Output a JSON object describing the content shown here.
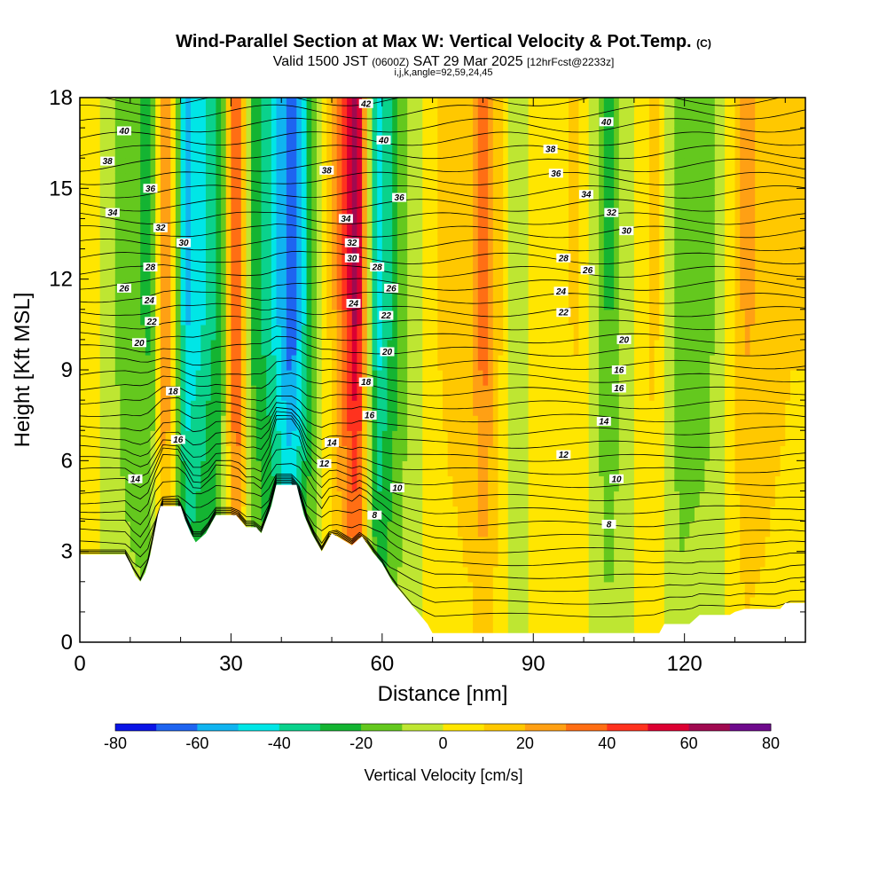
{
  "header": {
    "title": "Wind-Parallel Section at Max W: Vertical Velocity & Pot.Temp.",
    "title_suffix": "(C)",
    "valid_prefix": "Valid 1500 JST",
    "valid_z": "(0600Z)",
    "valid_date": "SAT 29 Mar 2025",
    "valid_fcst": "[12hrFcst@2233z]",
    "indices": "i,j,k,angle=92,59,24,45"
  },
  "chart_data": {
    "type": "heatmap",
    "xlabel": "Distance [nm]",
    "ylabel": "Height [Kft MSL]",
    "xlim": [
      0,
      144
    ],
    "ylim": [
      0,
      18
    ],
    "xticks": [
      0,
      30,
      60,
      90,
      120
    ],
    "yticks": [
      0,
      3,
      6,
      9,
      12,
      15,
      18
    ],
    "colorbar": {
      "label": "Vertical Velocity [cm/s]",
      "ticks": [
        -80,
        -60,
        -40,
        -20,
        0,
        20,
        40,
        60,
        80
      ],
      "levels": [
        -80,
        -70,
        -60,
        -50,
        -40,
        -30,
        -20,
        -10,
        0,
        10,
        20,
        30,
        40,
        50,
        60,
        70,
        80
      ],
      "colors": [
        "#0a14e6",
        "#1e64f0",
        "#10b4f0",
        "#00e6e6",
        "#0ad28c",
        "#14b432",
        "#64c81e",
        "#bee632",
        "#ffe600",
        "#ffc800",
        "#ffa014",
        "#ff6e14",
        "#ff321e",
        "#dc0032",
        "#a00a50",
        "#6e0a8c"
      ]
    },
    "velocity_columns_cm_s": [
      {
        "x": 2,
        "w": 8
      },
      {
        "x": 8,
        "w": -12
      },
      {
        "x": 14,
        "w": -20
      },
      {
        "x": 17,
        "w": 32
      },
      {
        "x": 21,
        "w": -46
      },
      {
        "x": 24,
        "w": -38
      },
      {
        "x": 28,
        "w": -22
      },
      {
        "x": 31,
        "w": 45
      },
      {
        "x": 34,
        "w": -18
      },
      {
        "x": 38,
        "w": -35
      },
      {
        "x": 42,
        "w": -62
      },
      {
        "x": 46,
        "w": -20
      },
      {
        "x": 51,
        "w": 22
      },
      {
        "x": 55,
        "w": 58
      },
      {
        "x": 59,
        "w": -42
      },
      {
        "x": 64,
        "w": -14
      },
      {
        "x": 70,
        "w": 8
      },
      {
        "x": 78,
        "w": 18
      },
      {
        "x": 80,
        "w": 34
      },
      {
        "x": 86,
        "w": -8
      },
      {
        "x": 92,
        "w": 6
      },
      {
        "x": 99,
        "w": 10
      },
      {
        "x": 105,
        "w": -20
      },
      {
        "x": 108,
        "w": -6
      },
      {
        "x": 114,
        "w": 12
      },
      {
        "x": 119,
        "w": -16
      },
      {
        "x": 125,
        "w": -12
      },
      {
        "x": 132,
        "w": 20
      },
      {
        "x": 141,
        "w": 10
      }
    ],
    "terrain_kft": [
      {
        "x": 0,
        "h": 2.9
      },
      {
        "x": 9,
        "h": 2.9
      },
      {
        "x": 10,
        "h": 2.6
      },
      {
        "x": 11,
        "h": 2.2
      },
      {
        "x": 12,
        "h": 2.0
      },
      {
        "x": 13,
        "h": 2.3
      },
      {
        "x": 14,
        "h": 2.9
      },
      {
        "x": 15.5,
        "h": 4.2
      },
      {
        "x": 16,
        "h": 4.5
      },
      {
        "x": 20,
        "h": 4.5
      },
      {
        "x": 21,
        "h": 4.0
      },
      {
        "x": 22,
        "h": 3.6
      },
      {
        "x": 23,
        "h": 3.3
      },
      {
        "x": 25,
        "h": 3.6
      },
      {
        "x": 27,
        "h": 4.2
      },
      {
        "x": 31,
        "h": 4.2
      },
      {
        "x": 33,
        "h": 3.8
      },
      {
        "x": 35,
        "h": 3.8
      },
      {
        "x": 36,
        "h": 3.6
      },
      {
        "x": 38,
        "h": 4.5
      },
      {
        "x": 39,
        "h": 5.2
      },
      {
        "x": 43,
        "h": 5.2
      },
      {
        "x": 44.5,
        "h": 4.2
      },
      {
        "x": 46,
        "h": 3.6
      },
      {
        "x": 48,
        "h": 3.0
      },
      {
        "x": 50,
        "h": 3.6
      },
      {
        "x": 52,
        "h": 3.4
      },
      {
        "x": 54,
        "h": 3.2
      },
      {
        "x": 56,
        "h": 3.5
      },
      {
        "x": 58,
        "h": 3.0
      },
      {
        "x": 60,
        "h": 2.6
      },
      {
        "x": 62,
        "h": 2.0
      },
      {
        "x": 64,
        "h": 1.6
      },
      {
        "x": 65,
        "h": 1.4
      },
      {
        "x": 66,
        "h": 1.2
      },
      {
        "x": 67,
        "h": 1.0
      },
      {
        "x": 69,
        "h": 0.6
      },
      {
        "x": 70,
        "h": 0.3
      },
      {
        "x": 115,
        "h": 0.3
      },
      {
        "x": 116,
        "h": 0.6
      },
      {
        "x": 121,
        "h": 0.6
      },
      {
        "x": 123,
        "h": 0.9
      },
      {
        "x": 129,
        "h": 0.9
      },
      {
        "x": 130,
        "h": 1.0
      },
      {
        "x": 132,
        "h": 1.1
      },
      {
        "x": 139,
        "h": 1.1
      },
      {
        "x": 140,
        "h": 1.3
      },
      {
        "x": 144,
        "h": 1.3
      }
    ],
    "isentrope_labels": [
      {
        "text": "42",
        "x": 56.8,
        "y": 17.8
      },
      {
        "text": "40",
        "x": 8.8,
        "y": 16.9
      },
      {
        "text": "40",
        "x": 60.3,
        "y": 16.6
      },
      {
        "text": "40",
        "x": 104.5,
        "y": 17.2
      },
      {
        "text": "38",
        "x": 5.5,
        "y": 15.9
      },
      {
        "text": "38",
        "x": 49,
        "y": 15.6
      },
      {
        "text": "38",
        "x": 93.4,
        "y": 16.3
      },
      {
        "text": "36",
        "x": 14,
        "y": 15.0
      },
      {
        "text": "36",
        "x": 63.4,
        "y": 14.7
      },
      {
        "text": "36",
        "x": 94.5,
        "y": 15.5
      },
      {
        "text": "34",
        "x": 6.5,
        "y": 14.2
      },
      {
        "text": "34",
        "x": 52.8,
        "y": 14.0
      },
      {
        "text": "34",
        "x": 100.5,
        "y": 14.8
      },
      {
        "text": "32",
        "x": 16,
        "y": 13.7
      },
      {
        "text": "32",
        "x": 54,
        "y": 13.2
      },
      {
        "text": "32",
        "x": 105.5,
        "y": 14.2
      },
      {
        "text": "30",
        "x": 20.6,
        "y": 13.2
      },
      {
        "text": "30",
        "x": 54,
        "y": 12.7
      },
      {
        "text": "30",
        "x": 108.5,
        "y": 13.6
      },
      {
        "text": "28",
        "x": 14,
        "y": 12.4
      },
      {
        "text": "28",
        "x": 59,
        "y": 12.4
      },
      {
        "text": "28",
        "x": 96,
        "y": 12.7
      },
      {
        "text": "26",
        "x": 8.8,
        "y": 11.7
      },
      {
        "text": "26",
        "x": 61.8,
        "y": 11.7
      },
      {
        "text": "26",
        "x": 100.8,
        "y": 12.3
      },
      {
        "text": "24",
        "x": 13.8,
        "y": 11.3
      },
      {
        "text": "24",
        "x": 54.3,
        "y": 11.2
      },
      {
        "text": "24",
        "x": 95.5,
        "y": 11.6
      },
      {
        "text": "22",
        "x": 14.3,
        "y": 10.6
      },
      {
        "text": "22",
        "x": 60.8,
        "y": 10.8
      },
      {
        "text": "22",
        "x": 96,
        "y": 10.9
      },
      {
        "text": "20",
        "x": 11.8,
        "y": 9.9
      },
      {
        "text": "20",
        "x": 61,
        "y": 9.6
      },
      {
        "text": "20",
        "x": 108,
        "y": 10.0
      },
      {
        "text": "18",
        "x": 18.5,
        "y": 8.3
      },
      {
        "text": "18",
        "x": 56.8,
        "y": 8.6
      },
      {
        "text": "16",
        "x": 19.5,
        "y": 6.7
      },
      {
        "text": "16",
        "x": 57.5,
        "y": 7.5
      },
      {
        "text": "16",
        "x": 107,
        "y": 9.0
      },
      {
        "text": "16",
        "x": 107,
        "y": 8.4
      },
      {
        "text": "14",
        "x": 11,
        "y": 5.4
      },
      {
        "text": "14",
        "x": 50,
        "y": 6.6
      },
      {
        "text": "14",
        "x": 104,
        "y": 7.3
      },
      {
        "text": "12",
        "x": 48.5,
        "y": 5.9
      },
      {
        "text": "12",
        "x": 96,
        "y": 6.2
      },
      {
        "text": "10",
        "x": 63,
        "y": 5.1
      },
      {
        "text": "10",
        "x": 106.5,
        "y": 5.4
      },
      {
        "text": "8",
        "x": 58.5,
        "y": 4.2
      },
      {
        "text": "8",
        "x": 105,
        "y": 3.9
      }
    ]
  }
}
